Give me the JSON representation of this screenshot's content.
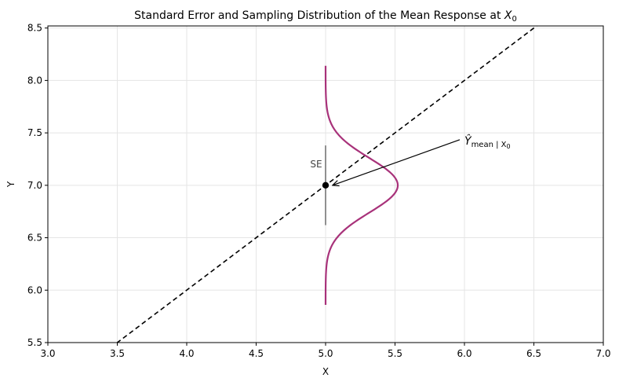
{
  "chart_data": {
    "type": "line",
    "title": "Standard Error and Sampling Distribution of the Mean Response at ",
    "title_math": "X",
    "title_math_sub": "0",
    "xlabel": "X",
    "ylabel": "Y",
    "xlim": [
      3.0,
      7.0
    ],
    "ylim": [
      5.5,
      8.52
    ],
    "xticks": [
      3.0,
      3.5,
      4.0,
      4.5,
      5.0,
      5.5,
      6.0,
      6.5,
      7.0
    ],
    "xtick_labels": [
      "3.0",
      "3.5",
      "4.0",
      "4.5",
      "5.0",
      "5.5",
      "6.0",
      "6.5",
      "7.0"
    ],
    "yticks": [
      5.5,
      6.0,
      6.5,
      7.0,
      7.5,
      8.0,
      8.5
    ],
    "ytick_labels": [
      "5.5",
      "6.0",
      "6.5",
      "7.0",
      "7.5",
      "8.0",
      "8.5"
    ],
    "grid": true,
    "regression_line": {
      "style": "dashed",
      "color": "#000000",
      "slope": 1.0,
      "intercept": 2.0,
      "x_range": [
        3.0,
        7.0
      ]
    },
    "point": {
      "x": 5.0,
      "y": 7.0,
      "color": "#000000"
    },
    "se_bar": {
      "x": 5.0,
      "y_low": 6.62,
      "y_high": 7.38,
      "color": "#555555",
      "label": "SE"
    },
    "sampling_curve": {
      "color": "#a8327a",
      "center_y": 7.0,
      "sd": 0.26,
      "base_x": 5.0,
      "peak_width": 0.52,
      "y_range": [
        5.86,
        8.14
      ]
    },
    "annotation": {
      "text_main": "Ŷ",
      "text_sub": "mean | X",
      "text_sub2": "0",
      "text_x": 6.0,
      "text_y": 7.45,
      "arrow_to_x": 5.05,
      "arrow_to_y": 7.0
    }
  }
}
